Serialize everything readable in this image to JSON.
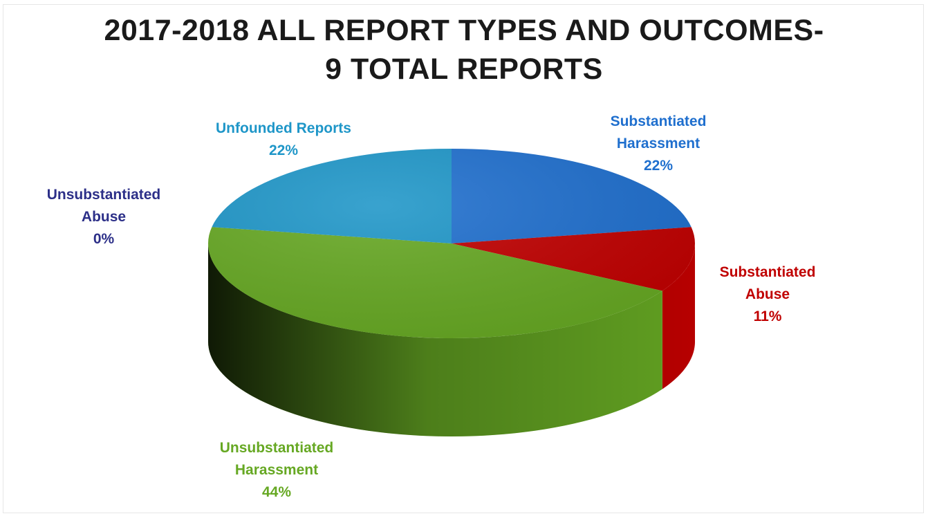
{
  "chart_data": {
    "type": "pie",
    "title_lines": [
      "2017-2018 ALL REPORT TYPES AND OUTCOMES-",
      "9 TOTAL REPORTS"
    ],
    "slices": [
      {
        "label_lines": [
          "Substantiated",
          "Harassment"
        ],
        "percent_label": "22%",
        "value": 22,
        "color": "#1f6fce"
      },
      {
        "label_lines": [
          "Substantiated",
          "Abuse"
        ],
        "percent_label": "11%",
        "value": 11,
        "color": "#c00000"
      },
      {
        "label_lines": [
          "Unsubstantiated",
          "Harassment"
        ],
        "percent_label": "44%",
        "value": 44,
        "color": "#66a823"
      },
      {
        "label_lines": [
          "Unsubstantiated",
          "Abuse"
        ],
        "percent_label": "0%",
        "value": 0,
        "color": "#2c2f88"
      },
      {
        "label_lines": [
          "Unfounded Reports"
        ],
        "percent_label": "22%",
        "value": 22,
        "color": "#1e96c8"
      }
    ],
    "start_angle": "12 o'clock",
    "direction": "clockwise",
    "style": "3d"
  }
}
